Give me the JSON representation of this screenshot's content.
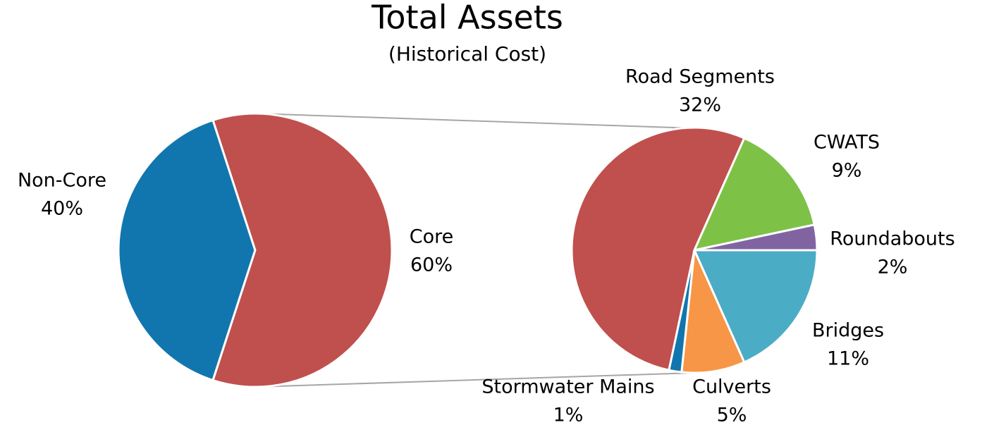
{
  "chart_data": [
    {
      "type": "pie",
      "title": "Total Assets",
      "subtitle": "(Historical Cost)",
      "categories": [
        "Non-Core",
        "Core"
      ],
      "values": [
        40,
        60
      ],
      "value_labels": [
        "40%",
        "60%"
      ],
      "colors": [
        "#1176ae",
        "#c0504d"
      ]
    },
    {
      "type": "pie",
      "categories": [
        "Bridges",
        "Culverts",
        "Stormwater Mains",
        "Road Segments",
        "CWATS",
        "Roundabouts"
      ],
      "values": [
        11,
        5,
        1,
        32,
        9,
        2
      ],
      "value_labels": [
        "11%",
        "5%",
        "1%",
        "32%",
        "9%",
        "2%"
      ],
      "colors": [
        "#4bacc6",
        "#f79646",
        "#1176ae",
        "#c0504d",
        "#7dc246",
        "#8064a2"
      ]
    }
  ]
}
